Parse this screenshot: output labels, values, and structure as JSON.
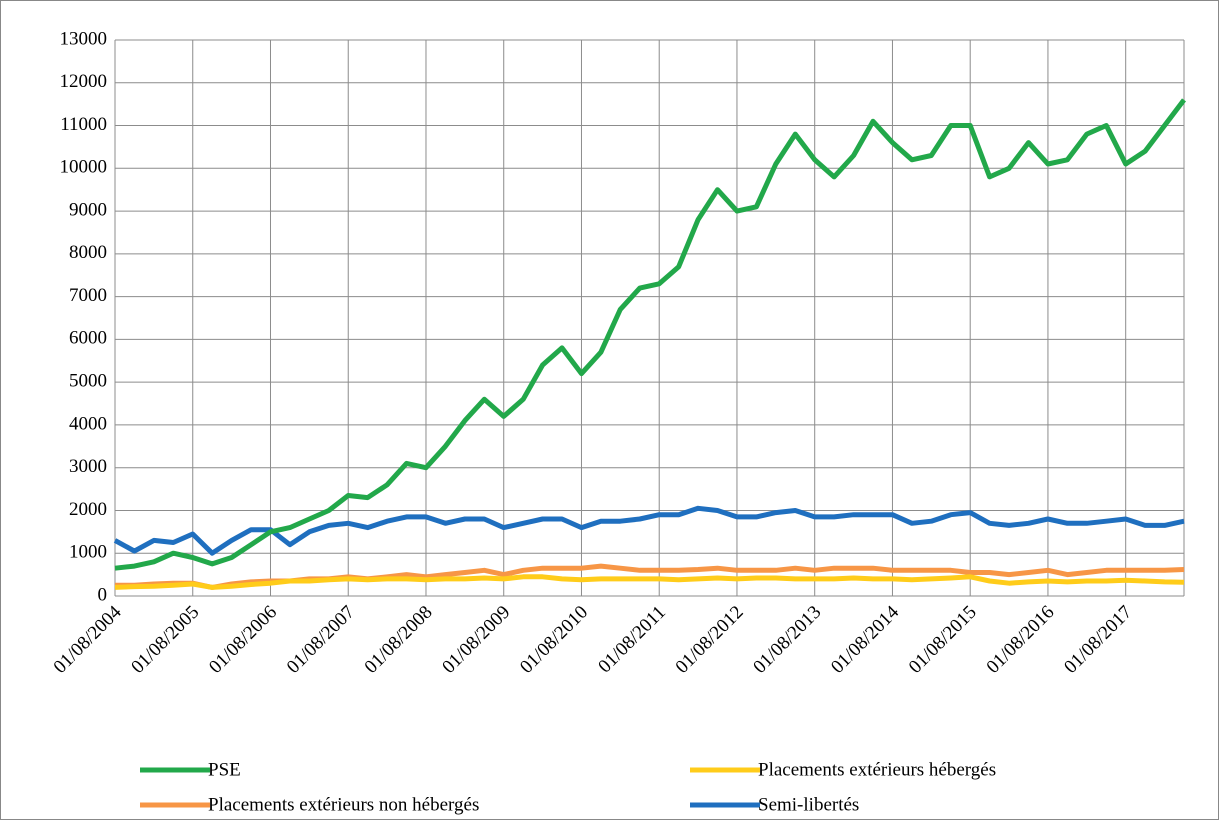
{
  "chart_data": {
    "type": "line",
    "categories": [
      "01/08/2004",
      null,
      null,
      null,
      "01/08/2005",
      null,
      null,
      null,
      "01/08/2006",
      null,
      null,
      null,
      "01/08/2007",
      null,
      null,
      null,
      "01/08/2008",
      null,
      null,
      null,
      "01/08/2009",
      null,
      null,
      null,
      "01/08/2010",
      null,
      null,
      null,
      "01/08/2011",
      null,
      null,
      null,
      "01/08/2012",
      null,
      null,
      null,
      "01/08/2013",
      null,
      null,
      null,
      "01/08/2014",
      null,
      null,
      null,
      "01/08/2015",
      null,
      null,
      null,
      "01/08/2016",
      null,
      null,
      null,
      "01/08/2017",
      null,
      null,
      null
    ],
    "series": [
      {
        "name": "PSE",
        "color": "#22a84a",
        "values": [
          650,
          700,
          800,
          1000,
          900,
          750,
          900,
          1200,
          1500,
          1600,
          1800,
          2000,
          2350,
          2300,
          2600,
          3100,
          3000,
          3500,
          4100,
          4600,
          4200,
          4600,
          5400,
          5800,
          5200,
          5700,
          6700,
          7200,
          7300,
          7700,
          8800,
          9500,
          9000,
          9100,
          10100,
          10800,
          10200,
          9800,
          10300,
          11100,
          10600,
          10200,
          10300,
          11000,
          11000,
          9800,
          10000,
          10600,
          10100,
          10200,
          10800,
          11000,
          10100,
          10400,
          11000,
          11600
        ]
      },
      {
        "name": "Placements extérieurs hébergés",
        "color": "#ffcc1a",
        "values": [
          200,
          220,
          230,
          250,
          280,
          200,
          230,
          270,
          300,
          350,
          350,
          380,
          400,
          380,
          400,
          400,
          380,
          400,
          400,
          420,
          400,
          450,
          450,
          400,
          380,
          400,
          400,
          400,
          400,
          380,
          400,
          420,
          400,
          420,
          420,
          400,
          400,
          400,
          420,
          400,
          400,
          380,
          400,
          420,
          450,
          350,
          300,
          330,
          350,
          330,
          350,
          350,
          370,
          350,
          330,
          320
        ]
      },
      {
        "name": "Placements extérieurs non hébergés",
        "color": "#f79646",
        "values": [
          250,
          250,
          280,
          300,
          300,
          200,
          280,
          330,
          350,
          350,
          400,
          400,
          450,
          400,
          450,
          500,
          450,
          500,
          550,
          600,
          500,
          600,
          650,
          650,
          650,
          700,
          650,
          600,
          600,
          600,
          620,
          650,
          600,
          600,
          600,
          650,
          600,
          650,
          650,
          650,
          600,
          600,
          600,
          600,
          550,
          550,
          500,
          550,
          600,
          500,
          550,
          600,
          600,
          600,
          600,
          620
        ]
      },
      {
        "name": "Semi-libertés",
        "color": "#1f6fbf",
        "values": [
          1300,
          1050,
          1300,
          1250,
          1450,
          1000,
          1300,
          1550,
          1550,
          1200,
          1500,
          1650,
          1700,
          1600,
          1750,
          1850,
          1850,
          1700,
          1800,
          1800,
          1600,
          1700,
          1800,
          1800,
          1600,
          1750,
          1750,
          1800,
          1900,
          1900,
          2050,
          2000,
          1850,
          1850,
          1950,
          2000,
          1850,
          1850,
          1900,
          1900,
          1900,
          1700,
          1750,
          1900,
          1950,
          1700,
          1650,
          1700,
          1800,
          1700,
          1700,
          1750,
          1800,
          1650,
          1650,
          1750
        ]
      }
    ],
    "ylim": [
      0,
      13000
    ],
    "yticks": [
      0,
      1000,
      2000,
      3000,
      4000,
      5000,
      6000,
      7000,
      8000,
      9000,
      10000,
      11000,
      12000,
      13000
    ],
    "grid": true,
    "legend": "bottom"
  }
}
